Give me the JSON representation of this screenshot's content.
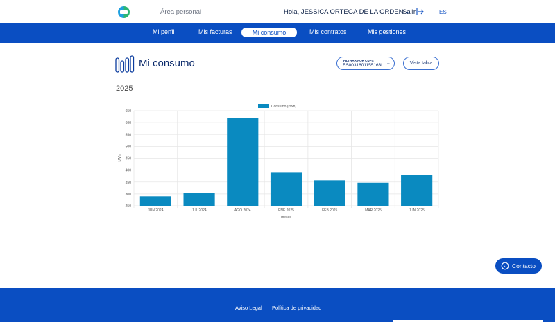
{
  "header": {
    "logo_icon": "brand-logo-icon",
    "area_label": "Área personal",
    "greeting": "Hola, JESSICA ORTEGA DE LA ORDEN",
    "logout_label": "Salir",
    "logout_icon": "exit-arrow-icon",
    "language": "ES"
  },
  "nav": {
    "items": [
      {
        "label": "Mi perfil",
        "active": false
      },
      {
        "label": "Mis facturas",
        "active": false
      },
      {
        "label": "Mi consumo",
        "active": true
      },
      {
        "label": "Mis contratos",
        "active": false
      },
      {
        "label": "Mis gestiones",
        "active": false
      }
    ]
  },
  "page": {
    "title_icon": "bar-meter-icon",
    "title": "Mi consumo",
    "filter_label": "FILTRAR POR CUPS",
    "filter_value": "ES0031601155163I",
    "view_table_label": "Vista tabla",
    "year": "2025"
  },
  "chart_data": {
    "type": "bar",
    "categories": [
      "JUN 2024",
      "JUL 2024",
      "AGO 2024",
      "ENE 2025",
      "FEB 2025",
      "MAR 2025",
      "JUN 2025"
    ],
    "series": [
      {
        "name": "Consumo (kWh)",
        "values": [
          290,
          304,
          620,
          389,
          357,
          347,
          380
        ]
      }
    ],
    "xlabel": "meses",
    "ylabel": "kWh",
    "ylim": [
      250,
      650
    ],
    "yticks": [
      250,
      300,
      350,
      400,
      450,
      500,
      550,
      600,
      650
    ],
    "grid": true,
    "legend": "top",
    "bar_color": "#0a8ac0"
  },
  "contact": {
    "label": "Contacto",
    "icon": "whatsapp-icon"
  },
  "footer": {
    "links": [
      "Aviso Legal",
      "Política de privacidad"
    ]
  },
  "colors": {
    "primary": "#0a4ec2",
    "bar": "#0a8ac0"
  }
}
